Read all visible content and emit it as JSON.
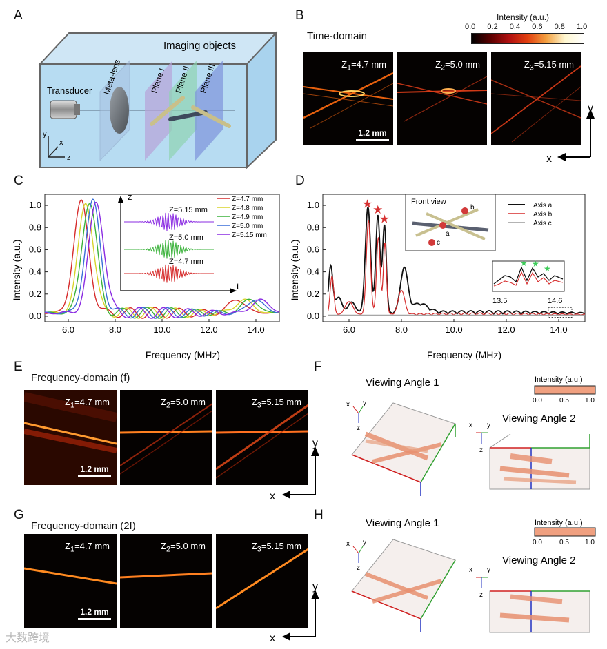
{
  "panels": {
    "A": "A",
    "B": "B",
    "C": "C",
    "D": "D",
    "E": "E",
    "F": "F",
    "G": "G",
    "H": "H"
  },
  "panelA": {
    "imaging_objects": "Imaging objects",
    "transducer": "Transducer",
    "meta_lens": "Meta-lens",
    "plane1": "Plane I",
    "plane2": "Plane II",
    "plane3": "Plane III",
    "ax_y": "y",
    "ax_x": "x",
    "ax_z": "z"
  },
  "panelB": {
    "title": "Time-domain",
    "colorbar_title": "Intensity (a.u.)",
    "colorbar_ticks": [
      "0.0",
      "0.2",
      "0.4",
      "0.6",
      "0.8",
      "1.0"
    ],
    "z_prefix": "Z",
    "z1_sub": "1",
    "z1_val": "=4.7 mm",
    "z2_sub": "2",
    "z2_val": "=5.0 mm",
    "z3_sub": "3",
    "z3_val": "=5.15 mm",
    "scale": "1.2 mm",
    "ax_x": "x",
    "ax_y": "y"
  },
  "panelE": {
    "title": "Frequency-domain (f)",
    "scale": "1.2 mm",
    "ax_x": "x",
    "ax_y": "y"
  },
  "panelG": {
    "title": "Frequency-domain (2f)",
    "scale": "1.2 mm",
    "ax_x": "x",
    "ax_y": "y"
  },
  "panelF": {
    "view1": "Viewing Angle 1",
    "view2": "Viewing Angle 2",
    "cb_title": "Intensity (a.u.)",
    "cb_ticks": [
      "0.0",
      "0.5",
      "1.0"
    ],
    "ax_x": "x",
    "ax_y": "y",
    "ax_z": "z"
  },
  "panelH": {
    "view1": "Viewing Angle 1",
    "view2": "Viewing Angle 2",
    "cb_title": "Intensity (a.u.)",
    "cb_ticks": [
      "0.0",
      "0.5",
      "1.0"
    ],
    "ax_x": "x",
    "ax_y": "y",
    "ax_z": "z"
  },
  "watermark": "大数跨境",
  "chart_data": [
    {
      "type": "line",
      "id": "C",
      "xlabel": "Frequency (MHz)",
      "ylabel": "Intensity (a.u.)",
      "xlim": [
        5,
        15
      ],
      "ylim": [
        -0.05,
        1.1
      ],
      "xticks": [
        "6.0",
        "8.0",
        "10.0",
        "12.0",
        "14.0"
      ],
      "yticks": [
        "0.0",
        "0.2",
        "0.4",
        "0.6",
        "0.8",
        "1.0"
      ],
      "series": [
        {
          "name": "Z=4.7 mm",
          "color": "#d62b2b",
          "peak": 6.55,
          "second_peak": 13.2
        },
        {
          "name": "Z=4.8 mm",
          "color": "#d8d42a",
          "peak": 6.75,
          "second_peak": 13.5
        },
        {
          "name": "Z=4.9 mm",
          "color": "#3ab23a",
          "peak": 6.9,
          "second_peak": 13.75
        },
        {
          "name": "Z=5.0 mm",
          "color": "#3a6fd8",
          "peak": 7.05,
          "second_peak": 14.0
        },
        {
          "name": "Z=5.15 mm",
          "color": "#8a2be2",
          "peak": 7.2,
          "second_peak": 14.2
        }
      ],
      "inset": {
        "ax_z": "z",
        "ax_t": "t",
        "labels": [
          "Z=5.15 mm",
          "Z=5.0 mm",
          "Z=4.7 mm"
        ]
      }
    },
    {
      "type": "line",
      "id": "D",
      "xlabel": "Frequency (MHz)",
      "ylabel": "Intensity (a.u.)",
      "xlim": [
        5,
        15
      ],
      "ylim": [
        -0.05,
        1.1
      ],
      "xticks": [
        "6.0",
        "8.0",
        "10.0",
        "12.0",
        "14.0"
      ],
      "yticks": [
        "0.0",
        "0.2",
        "0.4",
        "0.6",
        "0.8",
        "1.0"
      ],
      "series": [
        {
          "name": "Axis a",
          "color": "#111111"
        },
        {
          "name": "Axis b",
          "color": "#d62b2b"
        },
        {
          "name": "Axis c",
          "color": "#9a9a9a"
        }
      ],
      "peaks_marked": [
        6.7,
        7.1,
        7.35
      ],
      "inset_front": {
        "title": "Front view",
        "a": "a",
        "b": "b",
        "c": "c"
      },
      "inset_zoom": {
        "x_start": "13.5",
        "x_end": "14.6"
      }
    }
  ]
}
